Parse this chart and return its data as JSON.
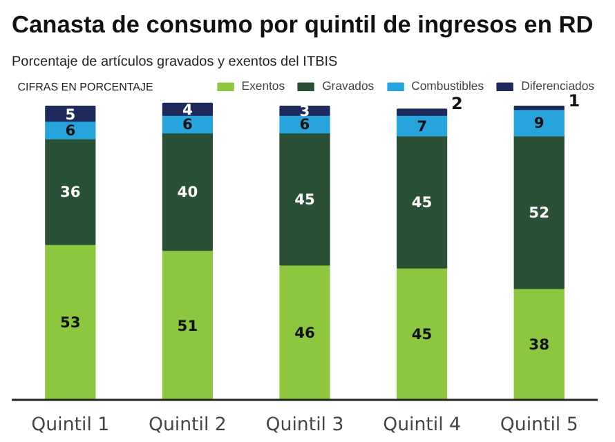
{
  "chart_data": {
    "type": "bar",
    "stacked": true,
    "data_labels": true,
    "legend": "top",
    "title": "Canasta de consumo por quintil de ingresos en RD",
    "subtitle": "Porcentaje de artículos gravados y exentos del ITBIS",
    "annotations": [
      "CIFRAS EN PORCENTAJE"
    ],
    "categories": [
      "Quintil 1",
      "Quintil 2",
      "Quintil 3",
      "Quintil 4",
      "Quintil 5"
    ],
    "series": [
      {
        "name": "Exentos",
        "color": "#8dc63f",
        "values": [
          53,
          51,
          46,
          45,
          38
        ]
      },
      {
        "name": "Gravados",
        "color": "#2a5035",
        "values": [
          36,
          40,
          45,
          45,
          52
        ]
      },
      {
        "name": "Combustibles",
        "color": "#27a4dc",
        "values": [
          6,
          6,
          6,
          7,
          9
        ]
      },
      {
        "name": "Diferenciados",
        "color": "#1f2a5c",
        "values": [
          5,
          4,
          3,
          2,
          1
        ]
      }
    ]
  }
}
